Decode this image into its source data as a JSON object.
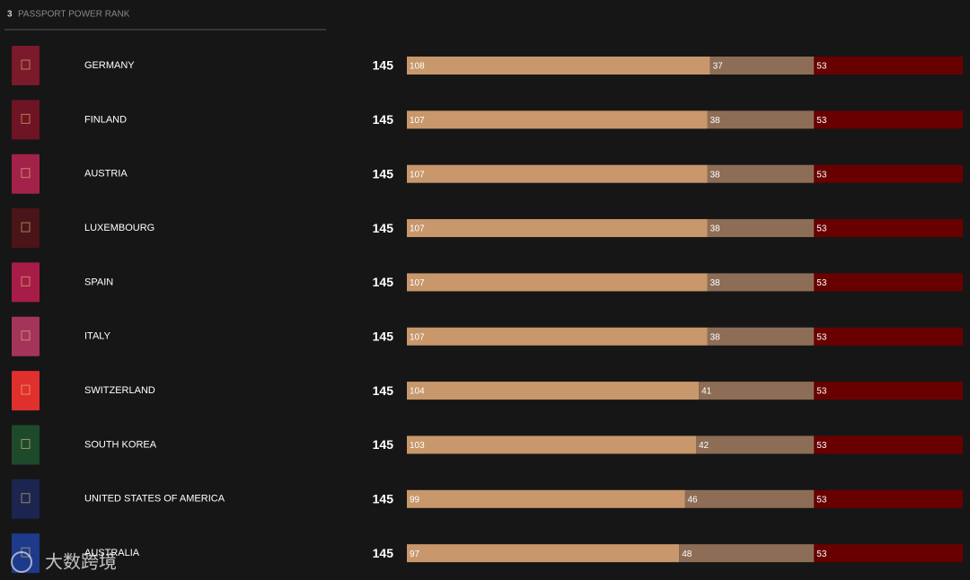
{
  "header": {
    "rank": "3",
    "title": "PASSPORT POWER RANK"
  },
  "segment_colors": [
    "#c8976b",
    "#8d6d56",
    "#690000"
  ],
  "rows": [
    {
      "country": "GERMANY",
      "total": 145,
      "segments": [
        108,
        37,
        53
      ],
      "passport_color": "#7a1a2a"
    },
    {
      "country": "FINLAND",
      "total": 145,
      "segments": [
        107,
        38,
        53
      ],
      "passport_color": "#6e1424"
    },
    {
      "country": "AUSTRIA",
      "total": 145,
      "segments": [
        107,
        38,
        53
      ],
      "passport_color": "#a3224a"
    },
    {
      "country": "LUXEMBOURG",
      "total": 145,
      "segments": [
        107,
        38,
        53
      ],
      "passport_color": "#4a1418"
    },
    {
      "country": "SPAIN",
      "total": 145,
      "segments": [
        107,
        38,
        53
      ],
      "passport_color": "#a81c48"
    },
    {
      "country": "ITALY",
      "total": 145,
      "segments": [
        107,
        38,
        53
      ],
      "passport_color": "#a4345a"
    },
    {
      "country": "SWITZERLAND",
      "total": 145,
      "segments": [
        104,
        41,
        53
      ],
      "passport_color": "#e0302e"
    },
    {
      "country": "SOUTH KOREA",
      "total": 145,
      "segments": [
        103,
        42,
        53
      ],
      "passport_color": "#1e4a2c"
    },
    {
      "country": "UNITED STATES OF AMERICA",
      "total": 145,
      "segments": [
        99,
        46,
        53
      ],
      "passport_color": "#1c2450"
    },
    {
      "country": "AUSTRALIA",
      "total": 145,
      "segments": [
        97,
        48,
        53
      ],
      "passport_color": "#1e3a8a"
    }
  ],
  "watermark": "大数跨境"
}
